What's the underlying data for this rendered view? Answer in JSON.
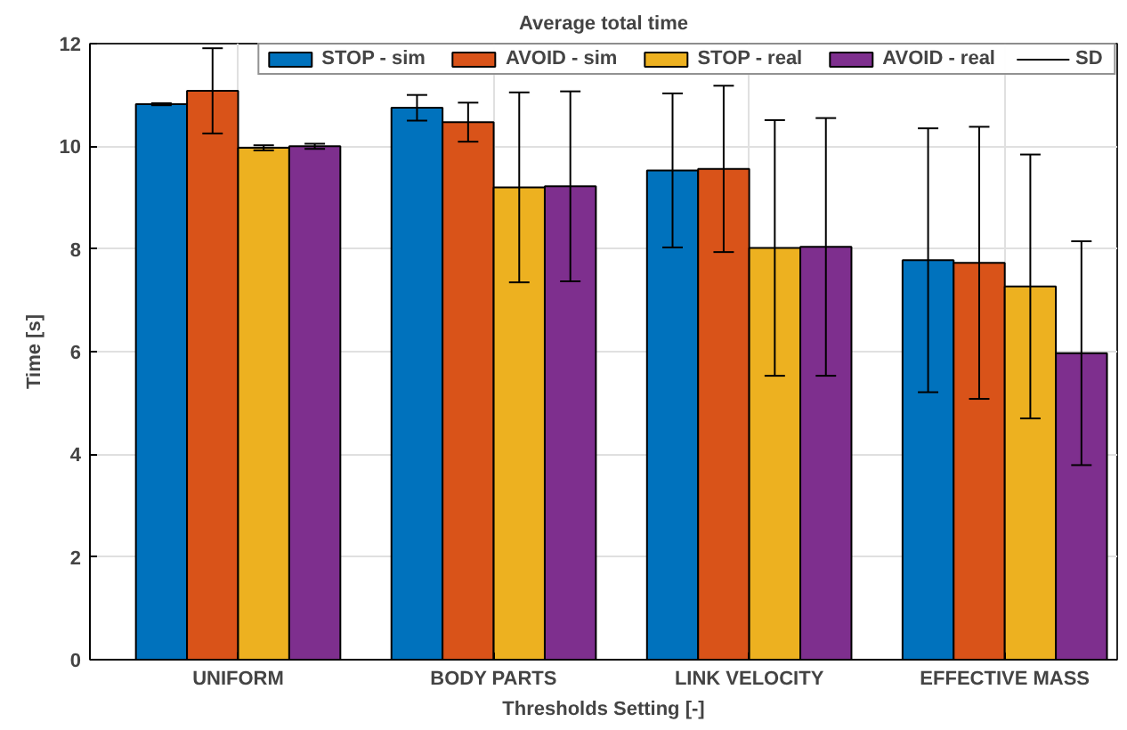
{
  "chart_data": {
    "type": "bar",
    "title": "Average total time",
    "xlabel": "Thresholds Setting [-]",
    "ylabel": "Time [s]",
    "categories": [
      "UNIFORM",
      "BODY PARTS",
      "LINK VELOCITY",
      "EFFECTIVE MASS"
    ],
    "series": [
      {
        "name": "STOP - sim",
        "color": "#0072bd",
        "values": [
          10.82,
          10.75,
          9.53,
          7.78
        ],
        "errors": [
          0.02,
          0.25,
          1.5,
          2.57
        ]
      },
      {
        "name": "AVOID - sim",
        "color": "#d95319",
        "values": [
          11.08,
          10.47,
          9.56,
          7.73
        ],
        "errors": [
          0.83,
          0.38,
          1.62,
          2.65
        ]
      },
      {
        "name": "STOP - real",
        "color": "#edb120",
        "values": [
          9.97,
          9.2,
          8.02,
          7.27
        ],
        "errors": [
          0.05,
          1.85,
          2.49,
          2.57
        ]
      },
      {
        "name": "AVOID - real",
        "color": "#7e2f8e",
        "values": [
          10.0,
          9.22,
          8.04,
          5.97
        ],
        "errors": [
          0.05,
          1.85,
          2.51,
          2.18
        ]
      }
    ],
    "annotations": [
      "SD"
    ],
    "ylim": [
      0,
      12
    ],
    "yticks": [
      0,
      2,
      4,
      6,
      8,
      10,
      12
    ],
    "grid": true,
    "legend": "top"
  }
}
